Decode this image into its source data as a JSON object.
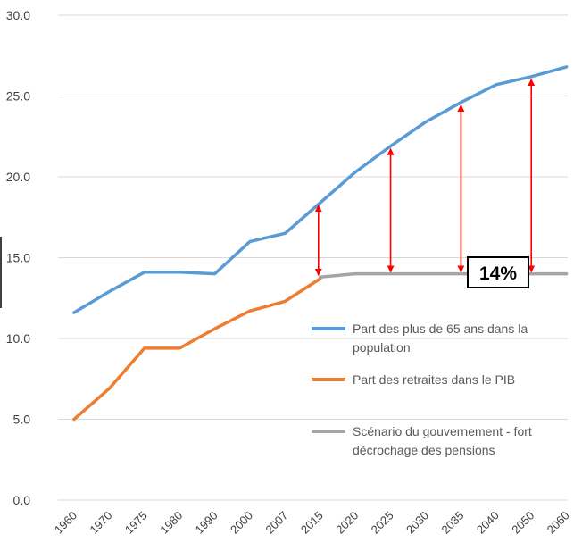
{
  "chart_data": {
    "type": "line",
    "categories": [
      "1960",
      "1970",
      "1975",
      "1980",
      "1990",
      "2000",
      "2007",
      "2015",
      "2020",
      "2025",
      "2030",
      "2035",
      "2040",
      "2050",
      "2060"
    ],
    "yticks": [
      "0.0",
      "5.0",
      "10.0",
      "15.0",
      "20.0",
      "25.0",
      "30.0"
    ],
    "ylim": [
      0,
      30
    ],
    "grid": true,
    "legend_position": "right",
    "series": [
      {
        "name": "Part des plus de 65 ans dans la population",
        "color": "#5B9BD5",
        "values": [
          11.6,
          12.9,
          14.1,
          14.1,
          14.0,
          16.0,
          16.5,
          18.4,
          20.3,
          21.9,
          23.4,
          24.6,
          25.7,
          26.2,
          26.8
        ]
      },
      {
        "name": "Part des retraites dans le PIB",
        "color": "#ED7D31",
        "values": [
          5.0,
          6.9,
          9.4,
          9.4,
          10.6,
          11.7,
          12.3,
          13.7,
          null,
          null,
          null,
          null,
          null,
          null,
          null
        ]
      },
      {
        "name": "Scénario du gouvernement - fort décrochage des pensions",
        "color": "#A5A5A5",
        "values": [
          null,
          null,
          null,
          null,
          null,
          null,
          null,
          13.8,
          14.0,
          14.0,
          14.0,
          14.0,
          14.0,
          14.0,
          14.0
        ]
      }
    ],
    "gap_arrows": [
      {
        "category": "2015",
        "from": 13.8,
        "to": 18.4
      },
      {
        "category": "2025",
        "from": 14.0,
        "to": 21.9
      },
      {
        "category": "2035",
        "from": 14.0,
        "to": 24.6
      },
      {
        "category": "2050",
        "from": 14.0,
        "to": 26.2
      }
    ],
    "arrow_color": "#FF0000",
    "annotation": {
      "text": "14%",
      "value": 14.0
    }
  }
}
